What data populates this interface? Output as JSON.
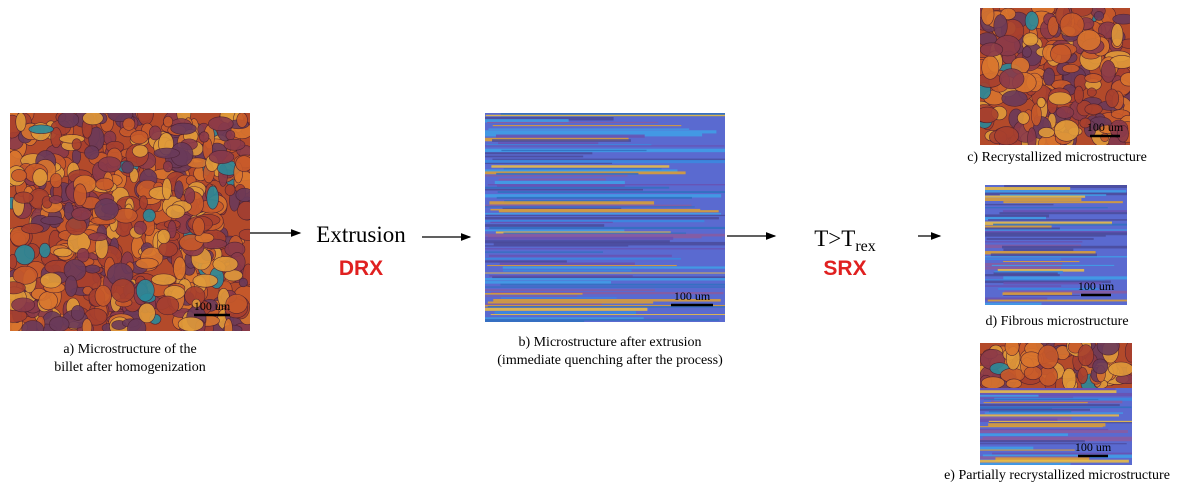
{
  "panels": [
    {
      "caption": [
        "a) Microstructure of the",
        "billet after homogenization"
      ],
      "scale_bar": "100 um"
    },
    {
      "caption": [
        "b) Microstructure after extrusion",
        "(immediate quenching after the process)"
      ],
      "scale_bar": "100 um"
    },
    {
      "caption": [
        "c) Recrystallized microstructure"
      ],
      "scale_bar": "100 um"
    },
    {
      "caption": [
        "d) Fibrous microstructure"
      ],
      "scale_bar": "100 um"
    },
    {
      "caption": [
        "e) Partially recrystallized microstructure"
      ],
      "scale_bar": "100 um"
    }
  ],
  "steps": [
    {
      "label": "Extrusion",
      "mechanism": "DRX"
    },
    {
      "label": "T>T",
      "subscript": "rex",
      "mechanism": "SRX"
    }
  ]
}
